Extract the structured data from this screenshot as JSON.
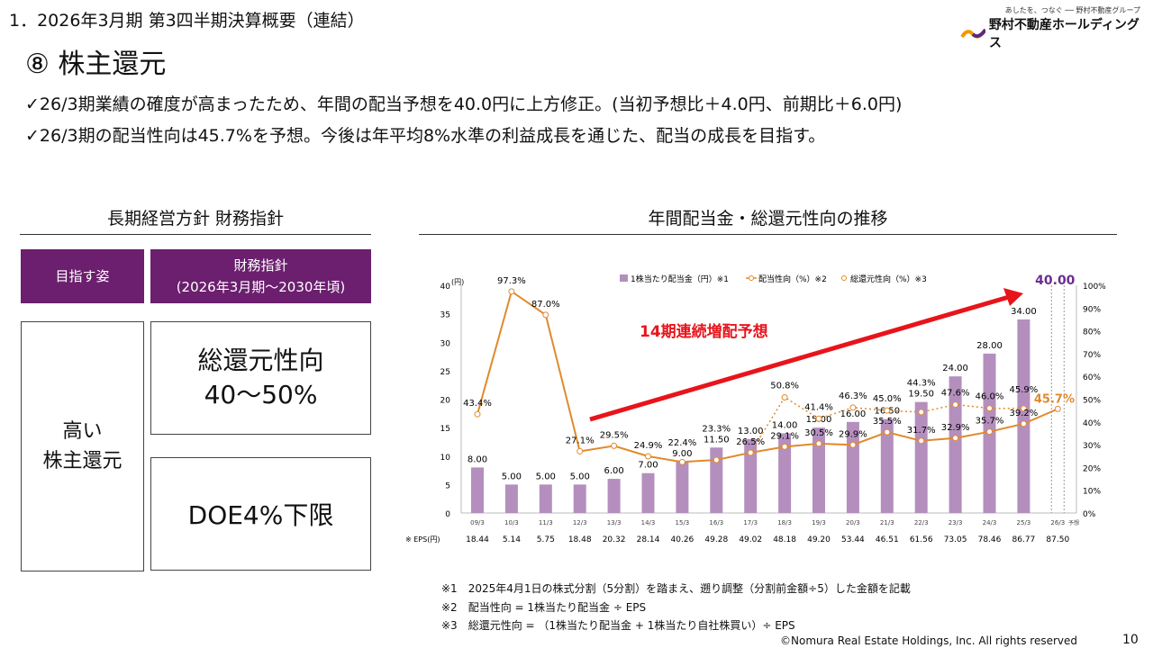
{
  "header": {
    "section": "1．2026年3月期 第3四半期決算概要（連結）",
    "title": "⑧ 株主還元",
    "logo_tag": "あしたを、つなぐ ── 野村不動産グループ",
    "logo_name": "野村不動産ホールディングス"
  },
  "bullets": [
    "✓26/3期業績の確度が高まったため、年間の配当予想を40.0円に上方修正。(当初予想比＋4.0円、前期比＋6.0円)",
    "✓26/3期の配当性向は45.7%を予想。今後は年平均8%水準の利益成長を通じた、配当の成長を目指す。"
  ],
  "left": {
    "heading": "長期経営方針 財務指針",
    "col1_header": "目指す姿",
    "col2_header_1": "財務指針",
    "col2_header_2": "(2026年3月期～2030年頃)",
    "goal_1": "高い",
    "goal_2": "株主還元",
    "policy1_1": "総還元性向",
    "policy1_2": "40～50%",
    "policy2": "DOE4%下限"
  },
  "chart_data": {
    "type": "bar+line",
    "title": "年間配当金・総還元性向の推移",
    "categories": [
      "09/3",
      "10/3",
      "11/3",
      "12/3",
      "13/3",
      "14/3",
      "15/3",
      "16/3",
      "17/3",
      "18/3",
      "19/3",
      "20/3",
      "21/3",
      "22/3",
      "23/3",
      "24/3",
      "25/3",
      "26/3"
    ],
    "forecast_label": "予想",
    "dividend": {
      "name": "1株当たり配当金（円）※1",
      "values": [
        8,
        5,
        5,
        5,
        6,
        7,
        9,
        11.5,
        13,
        14,
        15,
        16,
        16.5,
        19.5,
        24,
        28,
        34,
        40
      ],
      "labels": [
        "8.00",
        "5.00",
        "5.00",
        "5.00",
        "6.00",
        "7.00",
        "9.00",
        "11.50",
        "13.00",
        "14.00",
        "15.00",
        "16.00",
        "16.50",
        "19.50",
        "24.00",
        "28.00",
        "34.00",
        "40.00"
      ]
    },
    "payout": {
      "name": "配当性向（%）※2",
      "values": [
        43.4,
        97.3,
        87.0,
        27.1,
        29.5,
        24.9,
        22.4,
        23.3,
        26.5,
        29.1,
        30.5,
        29.9,
        35.5,
        31.7,
        32.9,
        35.7,
        39.2,
        45.7
      ]
    },
    "total_return": {
      "name": "総還元性向（%）※3",
      "values": [
        null,
        null,
        null,
        null,
        null,
        null,
        null,
        null,
        26.5,
        50.8,
        41.4,
        46.3,
        45.0,
        44.3,
        47.6,
        46.0,
        45.9,
        null
      ]
    },
    "eps_label": "※ EPS(円)",
    "eps": [
      "18.44",
      "5.14",
      "5.75",
      "18.48",
      "20.32",
      "28.14",
      "40.26",
      "49.28",
      "49.02",
      "48.18",
      "49.20",
      "53.44",
      "46.51",
      "61.56",
      "73.05",
      "78.46",
      "86.77",
      "87.50"
    ],
    "left_axis": {
      "unit": "(円)",
      "ticks": [
        0,
        5,
        10,
        15,
        20,
        25,
        30,
        35,
        40
      ]
    },
    "right_axis": {
      "ticks": [
        "0%",
        "10%",
        "20%",
        "30%",
        "40%",
        "50%",
        "60%",
        "70%",
        "80%",
        "90%",
        "100%"
      ]
    },
    "annotation": "14期連続増配予想",
    "colors": {
      "bar": "#b48fbe",
      "line": "#e08a2c",
      "arrow": "#e8141b",
      "accent": "#6b2e8e"
    }
  },
  "notes": [
    "※1　2025年4月1日の株式分割（5分割）を踏まえ、遡り調整（分割前金額÷5）した金額を記載",
    "※2　配当性向 = 1株当たり配当金 ÷ EPS",
    "※3　総還元性向 = （1株当たり配当金 + 1株当たり自社株買い）÷ EPS"
  ],
  "footer": {
    "copyright": "©Nomura Real Estate Holdings, Inc. All rights reserved",
    "page": "10"
  }
}
